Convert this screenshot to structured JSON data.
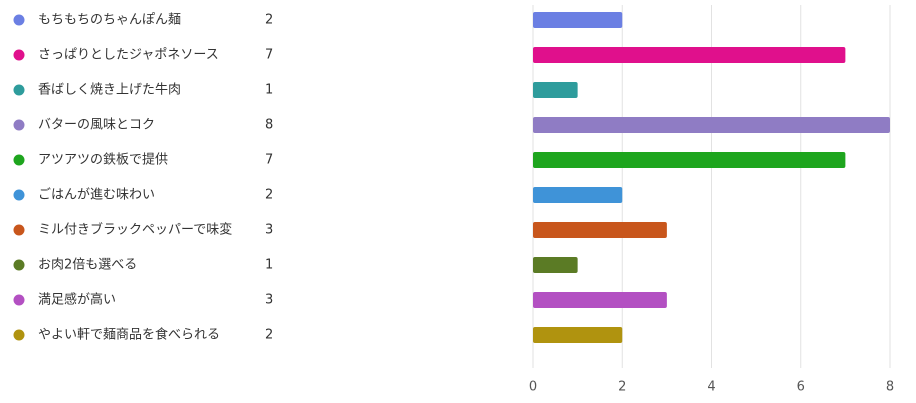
{
  "chart_data": {
    "type": "bar",
    "orientation": "horizontal",
    "categories": [
      "もちもちのちゃんぽん麺",
      "さっぱりとしたジャポネソース",
      "香ばしく焼き上げた牛肉",
      "バターの風味とコク",
      "アツアツの鉄板で提供",
      "ごはんが進む味わい",
      "ミル付きブラックペッパーで味変",
      "お肉2倍も選べる",
      "満足感が高い",
      "やよい軒で麺商品を食べられる"
    ],
    "values": [
      2,
      7,
      1,
      8,
      7,
      2,
      3,
      1,
      3,
      2
    ],
    "colors": [
      "#6b7fe3",
      "#e0108c",
      "#2e9c9c",
      "#8f7cc4",
      "#1ea51e",
      "#3f93d8",
      "#c8561c",
      "#5b7b25",
      "#b350c2",
      "#b0930f"
    ],
    "xlim": [
      0,
      8
    ],
    "xticks": [
      0,
      2,
      4,
      6,
      8
    ],
    "grid": true
  }
}
